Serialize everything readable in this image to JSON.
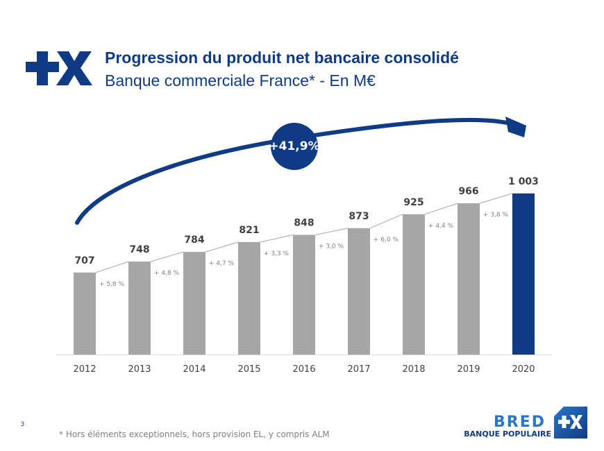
{
  "header": {
    "logo": "plus-x-logo",
    "title": "Progression du produit net bancaire consolidé",
    "subtitle": "Banque commerciale France* - En M€"
  },
  "chart_data": {
    "type": "bar",
    "title": "Progression du produit net bancaire consolidé",
    "subtitle": "Banque commerciale France* - En M€",
    "xlabel": "",
    "ylabel": "M€",
    "categories": [
      "2012",
      "2013",
      "2014",
      "2015",
      "2016",
      "2017",
      "2018",
      "2019",
      "2020"
    ],
    "values": [
      707,
      748,
      784,
      821,
      848,
      873,
      925,
      966,
      1003
    ],
    "value_labels": [
      "707",
      "748",
      "784",
      "821",
      "848",
      "873",
      "925",
      "966",
      "1 003"
    ],
    "growth_labels": [
      "+ 5,8 %",
      "+ 4,8 %",
      "+ 4,7 %",
      "+ 3,3 %",
      "+ 3,0 %",
      "+ 6,0 %",
      "+ 4,4 %",
      "+ 3,8 %"
    ],
    "highlight_index": 8,
    "ylim": [
      400,
      1100
    ],
    "grid": false,
    "overall_growth": "+41,9%",
    "colors": {
      "bar": "#a6a6a6",
      "highlight": "#0f3a84",
      "connector": "#a6a6a6",
      "arrow": "#0f3a84"
    }
  },
  "footer": {
    "page_number": "3",
    "footnote": "* Hors éléments exceptionnels, hors provision EL, y compris ALM",
    "brand_name": "BRED",
    "brand_sub": "BANQUE POPULAIRE"
  }
}
